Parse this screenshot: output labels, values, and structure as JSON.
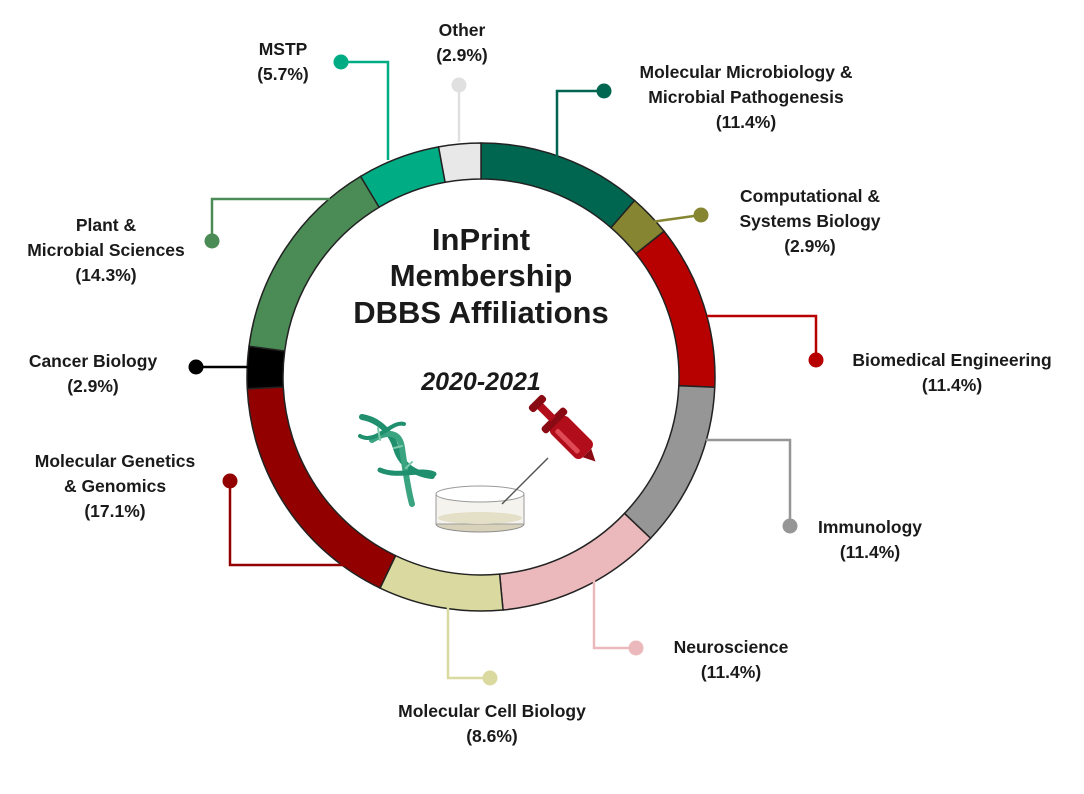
{
  "chart_data": {
    "type": "pie",
    "title_lines": [
      "InPrint",
      "Membership",
      "DBBS Affiliations"
    ],
    "subtitle": "2020-2021",
    "slices": [
      {
        "label_lines": [
          "Molecular Microbiology &",
          "Microbial Pathogenesis"
        ],
        "pct_text": "(11.4%)",
        "value": 11.4,
        "color": "#006650"
      },
      {
        "label_lines": [
          "Computational &",
          "Systems Biology"
        ],
        "pct_text": "(2.9%)",
        "value": 2.9,
        "color": "#858532"
      },
      {
        "label_lines": [
          "Biomedical Engineering"
        ],
        "pct_text": "(11.4%)",
        "value": 11.4,
        "color": "#b70000"
      },
      {
        "label_lines": [
          "Immunology"
        ],
        "pct_text": "(11.4%)",
        "value": 11.4,
        "color": "#969696"
      },
      {
        "label_lines": [
          "Neuroscience"
        ],
        "pct_text": "(11.4%)",
        "value": 11.4,
        "color": "#ebb9bb"
      },
      {
        "label_lines": [
          "Molecular Cell Biology"
        ],
        "pct_text": "(8.6%)",
        "value": 8.6,
        "color": "#dad99f"
      },
      {
        "label_lines": [
          "Molecular Genetics",
          "& Genomics"
        ],
        "pct_text": "(17.1%)",
        "value": 17.1,
        "color": "#920000"
      },
      {
        "label_lines": [
          "Cancer Biology"
        ],
        "pct_text": "(2.9%)",
        "value": 2.9,
        "color": "#000000"
      },
      {
        "label_lines": [
          "Plant &",
          "Microbial Sciences"
        ],
        "pct_text": "(14.3%)",
        "value": 14.3,
        "color": "#4b8b55"
      },
      {
        "label_lines": [
          "MSTP"
        ],
        "pct_text": "(5.7%)",
        "value": 5.7,
        "color": "#00ac84"
      },
      {
        "label_lines": [
          "Other"
        ],
        "pct_text": "(2.9%)",
        "value": 2.9,
        "color": "#e8e8e8"
      }
    ],
    "icons": [
      "dna-helix-icon",
      "petri-dish-icon",
      "syringe-icon"
    ]
  }
}
